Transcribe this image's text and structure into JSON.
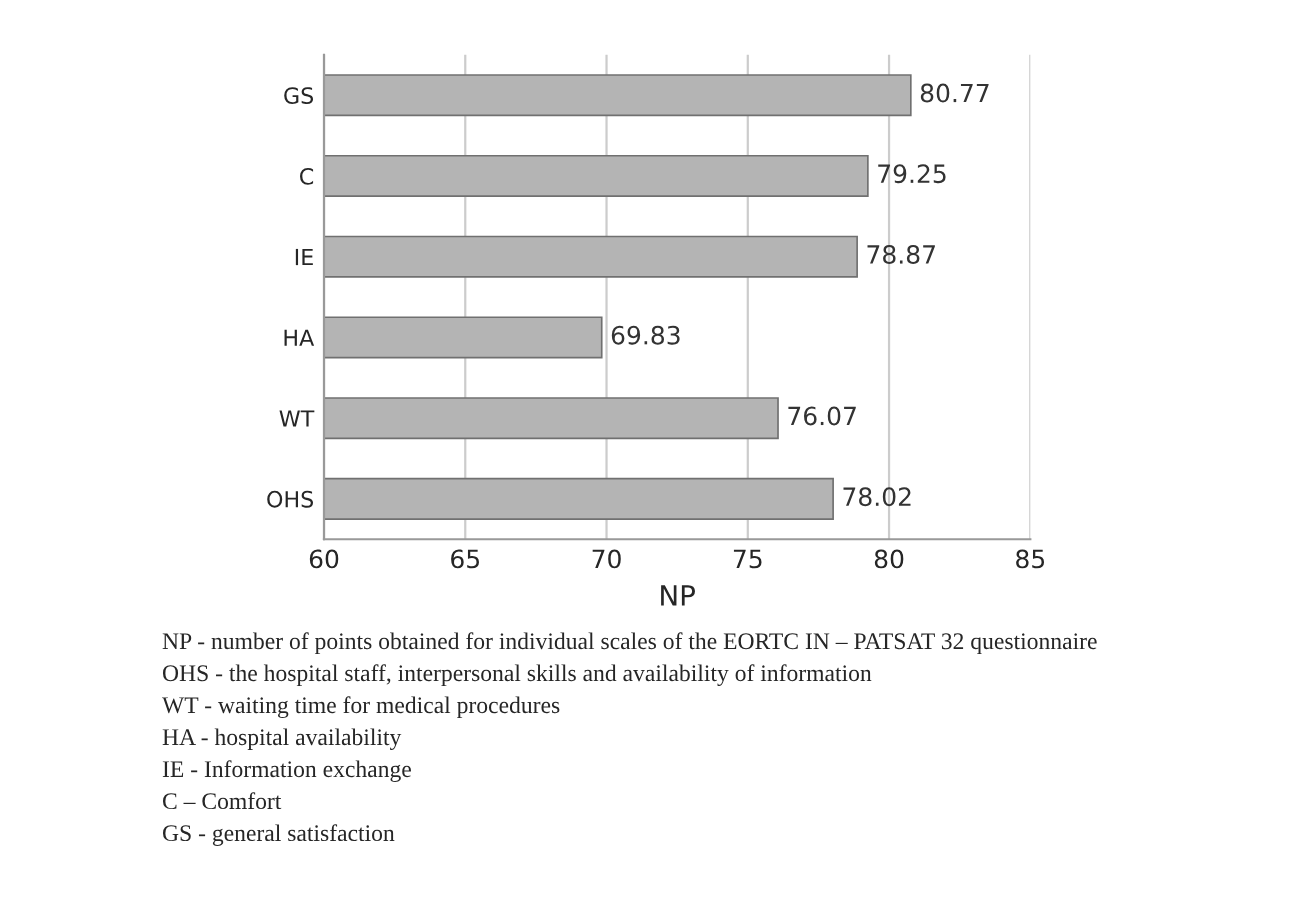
{
  "chart_data": {
    "type": "bar",
    "orientation": "horizontal",
    "xlabel": "NP",
    "categories": [
      "GS",
      "C",
      "IE",
      "HA",
      "WT",
      "OHS"
    ],
    "values": [
      80.77,
      79.25,
      78.87,
      69.83,
      76.07,
      78.02
    ],
    "color": "#b4b4b4",
    "xlim": [
      60,
      85
    ],
    "xticks": [
      60,
      65,
      70,
      75,
      80,
      85
    ],
    "grid": "x",
    "data_labels": true,
    "annotations": [
      "NP - number of points obtained for individual scales of the EORTC IN – PATSAT 32 questionnaire",
      "OHS - the hospital staff, interpersonal skills and availability of information",
      "WT - waiting time for medical procedures",
      "HA - hospital availability",
      "IE - Information exchange",
      "C – Comfort",
      "GS - general satisfaction"
    ]
  }
}
